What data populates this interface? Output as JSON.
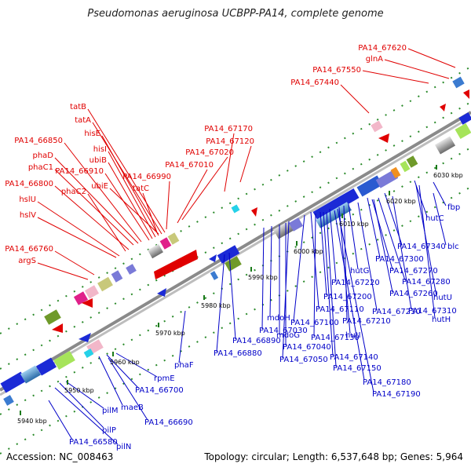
{
  "title": "Pseudomonas aeruginosa UCBPP-PA14, complete genome",
  "footer": {
    "accession": "Accession: NC_008463",
    "topology": "Topology: circular; Length: 6,537,648 bp; Genes: 5,964"
  },
  "kbp_ticks": [
    "5940 kbp",
    "5950 kbp",
    "5960 kbp",
    "5970 kbp",
    "5980 kbp",
    "5990 kbp",
    "6000 kbp",
    "6010 kbp",
    "6020 kbp",
    "6030 kbp"
  ],
  "forward_labels": [
    "PA14_67620",
    "glnA",
    "PA14_67550",
    "PA14_67440",
    "tatB",
    "tatA",
    "hisE",
    "hisI",
    "ubiB",
    "PA14_67170",
    "PA14_66850",
    "phaD",
    "PA14_66910",
    "phaC1",
    "PA14_67120",
    "PA14_67020",
    "PA14_67010",
    "PA14_66990",
    "ubiE",
    "tatC",
    "PA14_66800",
    "phaC2",
    "hslU",
    "hslV",
    "PA14_66760",
    "argS"
  ],
  "reverse_labels": [
    "fbp",
    "hutC",
    "blc",
    "PA14_67340",
    "PA14_67300",
    "PA14_67270",
    "hutG",
    "PA14_67280",
    "PA14_67220",
    "PA14_67260",
    "hutU",
    "PA14_67200",
    "PA14_67230",
    "PA14_67310",
    "PA14_67210",
    "hutH",
    "PA14_67110",
    "mdoH",
    "PA14_67100",
    "hutI",
    "PA14_67030",
    "mdoG",
    "PA14_67130",
    "PA14_67040",
    "PA14_66890",
    "PA14_67050",
    "PA14_67140",
    "PA14_66880",
    "PA14_67150",
    "phaF",
    "PA14_67180",
    "rpmE",
    "PA14_67190",
    "PA14_66700",
    "maeB",
    "pilM",
    "PA14_66690",
    "pilP",
    "PA14_66580",
    "pilN"
  ],
  "colors": {
    "forward": "#e00000",
    "reverse": "#0000c8",
    "backbone": "#999999",
    "tick": "#1a7a1a"
  }
}
